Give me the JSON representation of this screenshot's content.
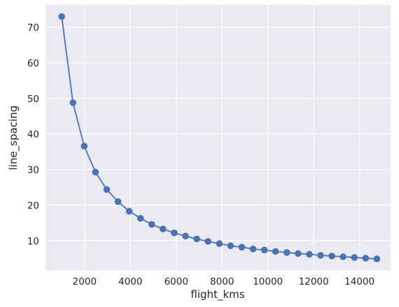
{
  "chart_data": {
    "type": "line",
    "title": "",
    "xlabel": "flight_kms",
    "ylabel": "line_spacing",
    "xlim": [
      293,
      15357
    ],
    "ylim": [
      1.6,
      76.3
    ],
    "xticks": [
      2000,
      4000,
      6000,
      8000,
      10000,
      12000,
      14000
    ],
    "yticks": [
      10,
      20,
      30,
      40,
      50,
      60,
      70
    ],
    "grid": true,
    "legend": "none",
    "style": "seaborn-darkgrid",
    "colors": {
      "background": "#eaeaf2",
      "grid": "#ffffff",
      "series": "#4c72b0"
    },
    "series": [
      {
        "marker": "circle",
        "x": [
          1000,
          1491,
          1983,
          2474,
          2966,
          3457,
          3948,
          4440,
          4931,
          5422,
          5914,
          6405,
          6897,
          7388,
          7879,
          8371,
          8862,
          9353,
          9845,
          10336,
          10828,
          11319,
          11810,
          12302,
          12793,
          13284,
          13776,
          14267,
          14759
        ],
        "y": [
          73.0,
          48.8,
          36.6,
          29.3,
          24.4,
          21.0,
          18.3,
          16.3,
          14.6,
          13.3,
          12.2,
          11.3,
          10.5,
          9.8,
          9.2,
          8.6,
          8.2,
          7.7,
          7.4,
          7.0,
          6.7,
          6.4,
          6.2,
          5.9,
          5.7,
          5.5,
          5.3,
          5.1,
          4.9
        ]
      }
    ]
  }
}
